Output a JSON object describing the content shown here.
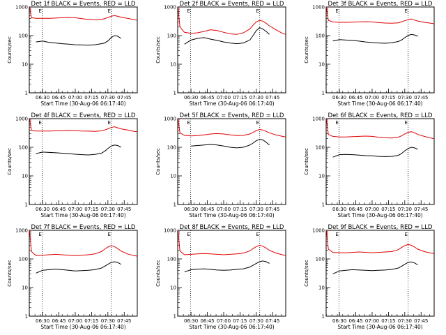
{
  "figure": {
    "colors": {
      "events": "#000000",
      "lld": "#e00000",
      "axes": "#000000",
      "background": "#ffffff"
    },
    "y_scale": "log",
    "ylim": [
      1,
      1000
    ],
    "y_tick_labels": [
      "1",
      "10",
      "100",
      "1000"
    ],
    "x_tick_labels": [
      "06:30",
      "06:45",
      "07:00",
      "07:15",
      "07:30",
      "07:45"
    ],
    "x_tick_hours": [
      6.5,
      6.75,
      7.0,
      7.25,
      7.5,
      7.75
    ],
    "xlim_hours": [
      6.296,
      7.95
    ],
    "marker_lines_hours": [
      6.494,
      7.552
    ],
    "marker_labels": [
      "E",
      "E"
    ],
    "marker_linestyle": "dotted",
    "ylabel": "Counts/sec",
    "xlabel": "Start Time (30-Aug-06 06:17:40)"
  },
  "chart_data": [
    {
      "type": "line",
      "title": "Det 1f BLACK = Events, RED = LLD",
      "x": [
        6.3,
        6.33,
        6.4,
        6.5,
        6.6,
        6.7,
        6.8,
        6.9,
        7.0,
        7.1,
        7.2,
        7.3,
        7.4,
        7.45,
        7.5,
        7.55,
        7.6,
        7.65,
        7.7,
        7.8,
        7.9,
        7.95
      ],
      "series": [
        {
          "name": "LLD",
          "color": "red",
          "values": [
            1000,
            420,
            400,
            400,
            400,
            410,
            420,
            430,
            420,
            390,
            370,
            360,
            370,
            390,
            430,
            470,
            500,
            470,
            440,
            400,
            360,
            350
          ]
        },
        {
          "name": "Events",
          "color": "black",
          "values": [
            null,
            null,
            60,
            65,
            58,
            55,
            52,
            50,
            48,
            47,
            46,
            48,
            52,
            55,
            65,
            85,
            100,
            95,
            80,
            null,
            null,
            null
          ]
        }
      ]
    },
    {
      "type": "line",
      "title": "Det 2f BLACK = Events, RED = LLD",
      "x": [
        6.3,
        6.33,
        6.4,
        6.5,
        6.6,
        6.7,
        6.8,
        6.9,
        7.0,
        7.1,
        7.2,
        7.3,
        7.4,
        7.45,
        7.5,
        7.55,
        7.6,
        7.65,
        7.7,
        7.8,
        7.9,
        7.95
      ],
      "series": [
        {
          "name": "LLD",
          "color": "red",
          "values": [
            1000,
            200,
            130,
            120,
            125,
            140,
            160,
            150,
            130,
            115,
            110,
            125,
            170,
            230,
            300,
            340,
            320,
            270,
            220,
            160,
            120,
            110
          ]
        },
        {
          "name": "Events",
          "color": "black",
          "values": [
            null,
            null,
            50,
            70,
            80,
            85,
            75,
            68,
            60,
            55,
            52,
            55,
            70,
            100,
            150,
            190,
            170,
            140,
            110,
            null,
            null,
            null
          ]
        }
      ]
    },
    {
      "type": "line",
      "title": "Det 3f BLACK = Events, RED = LLD",
      "x": [
        6.3,
        6.33,
        6.4,
        6.5,
        6.6,
        6.7,
        6.8,
        6.9,
        7.0,
        7.1,
        7.2,
        7.3,
        7.4,
        7.45,
        7.5,
        7.55,
        7.6,
        7.65,
        7.7,
        7.8,
        7.9,
        7.95
      ],
      "series": [
        {
          "name": "LLD",
          "color": "red",
          "values": [
            1000,
            340,
            300,
            290,
            290,
            295,
            300,
            305,
            300,
            285,
            275,
            270,
            280,
            300,
            330,
            360,
            380,
            350,
            320,
            290,
            270,
            260
          ]
        },
        {
          "name": "Events",
          "color": "black",
          "values": [
            null,
            null,
            65,
            72,
            70,
            68,
            64,
            60,
            57,
            55,
            54,
            56,
            62,
            70,
            85,
            100,
            110,
            105,
            95,
            null,
            null,
            null
          ]
        }
      ]
    },
    {
      "type": "line",
      "title": "Det 4f BLACK = Events, RED = LLD",
      "x": [
        6.3,
        6.33,
        6.4,
        6.5,
        6.6,
        6.7,
        6.8,
        6.9,
        7.0,
        7.1,
        7.2,
        7.3,
        7.4,
        7.45,
        7.5,
        7.55,
        7.6,
        7.65,
        7.7,
        7.8,
        7.9,
        7.95
      ],
      "series": [
        {
          "name": "LLD",
          "color": "red",
          "values": [
            1000,
            390,
            370,
            370,
            370,
            375,
            380,
            385,
            380,
            370,
            365,
            360,
            375,
            400,
            440,
            490,
            520,
            480,
            440,
            400,
            360,
            350
          ]
        },
        {
          "name": "Events",
          "color": "black",
          "values": [
            null,
            null,
            60,
            68,
            66,
            64,
            62,
            60,
            57,
            55,
            54,
            56,
            62,
            72,
            90,
            110,
            120,
            115,
            100,
            null,
            null,
            null
          ]
        }
      ]
    },
    {
      "type": "line",
      "title": "Det 5f BLACK = Events, RED = LLD",
      "x": [
        6.3,
        6.33,
        6.4,
        6.5,
        6.6,
        6.7,
        6.8,
        6.9,
        7.0,
        7.1,
        7.2,
        7.3,
        7.4,
        7.45,
        7.5,
        7.55,
        7.6,
        7.65,
        7.7,
        7.8,
        7.9,
        7.95
      ],
      "series": [
        {
          "name": "LLD",
          "color": "red",
          "values": [
            1000,
            320,
            260,
            250,
            255,
            270,
            290,
            300,
            290,
            270,
            255,
            260,
            290,
            330,
            380,
            420,
            400,
            360,
            320,
            270,
            240,
            230
          ]
        },
        {
          "name": "Events",
          "color": "black",
          "values": [
            null,
            null,
            null,
            110,
            115,
            120,
            125,
            120,
            110,
            100,
            95,
            100,
            120,
            140,
            170,
            190,
            180,
            150,
            120,
            null,
            null,
            null
          ]
        }
      ]
    },
    {
      "type": "line",
      "title": "Det 6f BLACK = Events, RED = LLD",
      "x": [
        6.3,
        6.33,
        6.4,
        6.5,
        6.6,
        6.7,
        6.8,
        6.9,
        7.0,
        7.1,
        7.2,
        7.3,
        7.4,
        7.45,
        7.5,
        7.55,
        7.6,
        7.65,
        7.7,
        7.8,
        7.9,
        7.95
      ],
      "series": [
        {
          "name": "LLD",
          "color": "red",
          "values": [
            1000,
            280,
            240,
            230,
            230,
            235,
            240,
            245,
            240,
            225,
            215,
            210,
            225,
            250,
            290,
            330,
            350,
            320,
            280,
            240,
            210,
            200
          ]
        },
        {
          "name": "Events",
          "color": "black",
          "values": [
            null,
            null,
            45,
            55,
            56,
            55,
            53,
            51,
            50,
            48,
            47,
            48,
            52,
            60,
            75,
            90,
            100,
            95,
            85,
            null,
            null,
            null
          ]
        }
      ]
    },
    {
      "type": "line",
      "title": "Det 7f BLACK = Events, RED = LLD",
      "x": [
        6.3,
        6.33,
        6.4,
        6.5,
        6.6,
        6.7,
        6.8,
        6.9,
        7.0,
        7.1,
        7.2,
        7.3,
        7.4,
        7.45,
        7.5,
        7.55,
        7.6,
        7.65,
        7.7,
        7.8,
        7.9,
        7.95
      ],
      "series": [
        {
          "name": "LLD",
          "color": "red",
          "values": [
            1000,
            180,
            130,
            135,
            140,
            145,
            140,
            135,
            130,
            135,
            140,
            150,
            180,
            220,
            260,
            290,
            270,
            230,
            190,
            150,
            130,
            125
          ]
        },
        {
          "name": "Events",
          "color": "black",
          "values": [
            null,
            null,
            32,
            40,
            42,
            44,
            42,
            40,
            38,
            39,
            40,
            42,
            48,
            55,
            65,
            75,
            80,
            75,
            65,
            null,
            null,
            null
          ]
        }
      ]
    },
    {
      "type": "line",
      "title": "Det 8f BLACK = Events, RED = LLD",
      "x": [
        6.3,
        6.33,
        6.4,
        6.5,
        6.6,
        6.7,
        6.8,
        6.9,
        7.0,
        7.1,
        7.2,
        7.3,
        7.4,
        7.45,
        7.5,
        7.55,
        7.6,
        7.65,
        7.7,
        7.8,
        7.9,
        7.95
      ],
      "series": [
        {
          "name": "LLD",
          "color": "red",
          "values": [
            1000,
            190,
            140,
            145,
            150,
            155,
            150,
            145,
            140,
            145,
            150,
            160,
            190,
            230,
            270,
            300,
            280,
            240,
            200,
            160,
            140,
            130
          ]
        },
        {
          "name": "Events",
          "color": "black",
          "values": [
            null,
            null,
            35,
            42,
            44,
            45,
            43,
            41,
            40,
            41,
            43,
            45,
            52,
            60,
            70,
            80,
            85,
            80,
            70,
            null,
            null,
            null
          ]
        }
      ]
    },
    {
      "type": "line",
      "title": "Det 9f BLACK = Events, RED = LLD",
      "x": [
        6.3,
        6.33,
        6.4,
        6.5,
        6.6,
        6.7,
        6.8,
        6.9,
        7.0,
        7.1,
        7.2,
        7.3,
        7.4,
        7.45,
        7.5,
        7.55,
        7.6,
        7.65,
        7.7,
        7.8,
        7.9,
        7.95
      ],
      "series": [
        {
          "name": "LLD",
          "color": "red",
          "values": [
            1000,
            220,
            170,
            165,
            165,
            170,
            175,
            170,
            165,
            170,
            175,
            180,
            210,
            250,
            290,
            320,
            300,
            260,
            220,
            180,
            160,
            155
          ]
        },
        {
          "name": "Events",
          "color": "black",
          "values": [
            null,
            null,
            30,
            38,
            40,
            42,
            41,
            40,
            39,
            40,
            41,
            43,
            48,
            55,
            65,
            75,
            78,
            72,
            62,
            null,
            null,
            null
          ]
        }
      ]
    }
  ]
}
